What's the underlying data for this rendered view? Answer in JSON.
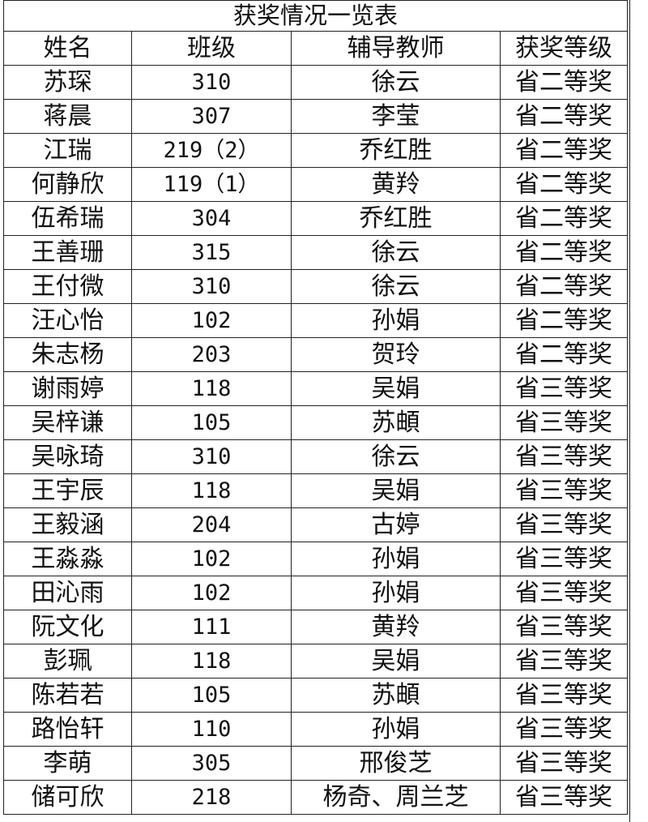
{
  "table": {
    "title": "获奖情况一览表",
    "columns": [
      "姓名",
      "班级",
      "辅导教师",
      "获奖等级"
    ],
    "rows": [
      [
        "苏琛",
        "310",
        "徐云",
        "省二等奖"
      ],
      [
        "蒋晨",
        "307",
        "李莹",
        "省二等奖"
      ],
      [
        "江瑞",
        "219（2）",
        "乔红胜",
        "省二等奖"
      ],
      [
        "何静欣",
        "119（1）",
        "黄羚",
        "省二等奖"
      ],
      [
        "伍希瑞",
        "304",
        "乔红胜",
        "省二等奖"
      ],
      [
        "王善珊",
        "315",
        "徐云",
        "省二等奖"
      ],
      [
        "王付微",
        "310",
        "徐云",
        "省二等奖"
      ],
      [
        "汪心怡",
        "102",
        "孙娟",
        "省二等奖"
      ],
      [
        "朱志杨",
        "203",
        "贺玲",
        "省二等奖"
      ],
      [
        "谢雨婷",
        "118",
        "吴娟",
        "省三等奖"
      ],
      [
        "吴梓谦",
        "105",
        "苏頔",
        "省三等奖"
      ],
      [
        "吴咏琦",
        "310",
        "徐云",
        "省三等奖"
      ],
      [
        "王宇辰",
        "118",
        "吴娟",
        "省三等奖"
      ],
      [
        "王毅涵",
        "204",
        "古婷",
        "省三等奖"
      ],
      [
        "王淼淼",
        "102",
        "孙娟",
        "省三等奖"
      ],
      [
        "田沁雨",
        "102",
        "孙娟",
        "省三等奖"
      ],
      [
        "阮文化",
        "111",
        "黄羚",
        "省三等奖"
      ],
      [
        "彭珮",
        "118",
        "吴娟",
        "省三等奖"
      ],
      [
        "陈若若",
        "105",
        "苏頔",
        "省三等奖"
      ],
      [
        "路怡轩",
        "110",
        "孙娟",
        "省三等奖"
      ],
      [
        "李萌",
        "305",
        "邢俊芝",
        "省三等奖"
      ],
      [
        "储可欣",
        "218",
        "杨奇、周兰芝",
        "省三等奖"
      ]
    ]
  }
}
